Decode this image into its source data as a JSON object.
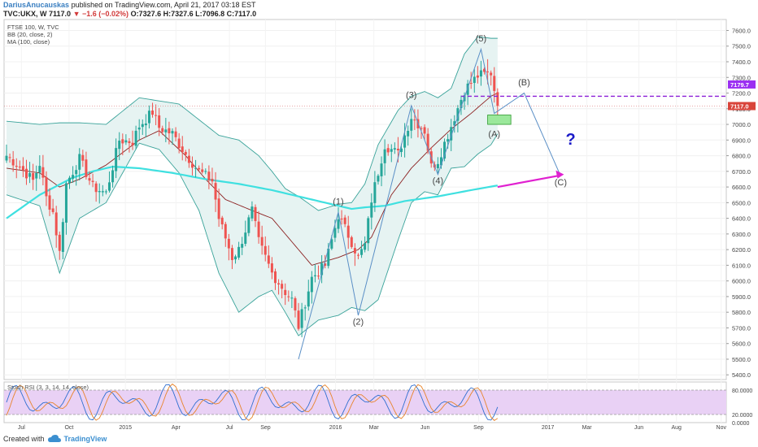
{
  "header": {
    "author": "DariusAnucauskas",
    "published": "published on TradingView.com, April 21, 2017 03:18 EST",
    "symbol": "TVC:UKX, W",
    "last": "7117.0",
    "change": "−1.6 (−0.02%)",
    "ohlc": "O:7327.6 H:7327.6 L:7096.8 C:7117.0"
  },
  "footer": {
    "created_with": "Created with",
    "brand": "TradingView"
  },
  "colors": {
    "up": "#26a69a",
    "down": "#ef5350",
    "ma100": "#3fe0e0",
    "ma20": "#8b2020",
    "bb": "#3aa39a",
    "bb_fill": "#e6f3f2",
    "wave": "#5a8fc6",
    "purple": "#8b1fd6",
    "magenta": "#e020d0",
    "green_box": "#9be89b",
    "stoch_k": "#2f6fd0",
    "stoch_d": "#e8842a",
    "stoch_band": "#e9d1f5",
    "last_price_tag": "#d9443a",
    "level_tag": "#9b2ff2",
    "question": "#1a1ac8"
  },
  "chart_data": {
    "type": "candlestick",
    "indicators_legend": [
      "FTSE 100, W, TVC",
      "BB (20, close, 2)",
      "MA (100, close)"
    ],
    "price_axis": [
      5400,
      5500,
      5600,
      5700,
      5800,
      5900,
      6000,
      6100,
      6200,
      6300,
      6400,
      6500,
      6600,
      6700,
      6800,
      6900,
      7000,
      7100,
      7200,
      7300,
      7400,
      7500,
      7600
    ],
    "price_range": [
      5370,
      7670
    ],
    "time_axis": [
      "Jul",
      "Oct",
      "2015",
      "Apr",
      "Jul",
      "Sep",
      "2016",
      "Mar",
      "Jun",
      "Sep",
      "2017",
      "Mar",
      "Jun",
      "Aug",
      "Nov"
    ],
    "last_price_label": "7117.0",
    "level_label": "7179.7",
    "level_value": 7179.7,
    "close_anchors": [
      [
        0,
        6800
      ],
      [
        4,
        6730
      ],
      [
        8,
        6640
      ],
      [
        10,
        6750
      ],
      [
        12,
        6530
      ],
      [
        14,
        6440
      ],
      [
        16,
        6180
      ],
      [
        18,
        6620
      ],
      [
        22,
        6780
      ],
      [
        26,
        6600
      ],
      [
        30,
        6560
      ],
      [
        34,
        6900
      ],
      [
        38,
        6890
      ],
      [
        40,
        6990
      ],
      [
        44,
        7080
      ],
      [
        46,
        6980
      ],
      [
        50,
        6940
      ],
      [
        54,
        6810
      ],
      [
        58,
        6700
      ],
      [
        62,
        6640
      ],
      [
        64,
        6400
      ],
      [
        68,
        6150
      ],
      [
        70,
        6200
      ],
      [
        74,
        6450
      ],
      [
        76,
        6250
      ],
      [
        80,
        6050
      ],
      [
        84,
        5930
      ],
      [
        86,
        5880
      ],
      [
        88,
        5710
      ],
      [
        92,
        6020
      ],
      [
        96,
        6100
      ],
      [
        100,
        6420
      ],
      [
        104,
        6250
      ],
      [
        106,
        6150
      ],
      [
        108,
        6230
      ],
      [
        110,
        6520
      ],
      [
        114,
        6870
      ],
      [
        118,
        6810
      ],
      [
        122,
        7050
      ],
      [
        126,
        6960
      ],
      [
        128,
        6730
      ],
      [
        130,
        6770
      ],
      [
        134,
        6990
      ],
      [
        138,
        7220
      ],
      [
        142,
        7310
      ],
      [
        146,
        7330
      ],
      [
        148,
        7117
      ]
    ],
    "bb_anchors": [
      [
        0,
        7020,
        6550
      ],
      [
        10,
        7000,
        6480
      ],
      [
        16,
        7010,
        6050
      ],
      [
        22,
        7010,
        6400
      ],
      [
        30,
        7000,
        6500
      ],
      [
        40,
        7170,
        6880
      ],
      [
        46,
        7150,
        6840
      ],
      [
        52,
        7130,
        6690
      ],
      [
        58,
        7030,
        6450
      ],
      [
        64,
        6930,
        6050
      ],
      [
        70,
        6900,
        5800
      ],
      [
        76,
        6800,
        5900
      ],
      [
        80,
        6700,
        5940
      ],
      [
        84,
        6590,
        5800
      ],
      [
        88,
        6540,
        5650
      ],
      [
        94,
        6450,
        5750
      ],
      [
        100,
        6490,
        5780
      ],
      [
        104,
        6500,
        5830
      ],
      [
        108,
        6620,
        5810
      ],
      [
        112,
        6870,
        5880
      ],
      [
        118,
        7090,
        6260
      ],
      [
        122,
        7180,
        6500
      ],
      [
        126,
        7210,
        6570
      ],
      [
        130,
        7170,
        6550
      ],
      [
        134,
        7230,
        6720
      ],
      [
        138,
        7450,
        6730
      ],
      [
        142,
        7560,
        6810
      ],
      [
        146,
        7550,
        6870
      ],
      [
        148,
        7550,
        6940
      ]
    ],
    "ma100_anchors": [
      [
        0,
        6400
      ],
      [
        10,
        6550
      ],
      [
        20,
        6660
      ],
      [
        26,
        6700
      ],
      [
        32,
        6730
      ],
      [
        40,
        6720
      ],
      [
        50,
        6690
      ],
      [
        60,
        6650
      ],
      [
        70,
        6620
      ],
      [
        80,
        6580
      ],
      [
        90,
        6530
      ],
      [
        100,
        6480
      ],
      [
        104,
        6460
      ],
      [
        108,
        6470
      ],
      [
        114,
        6480
      ],
      [
        120,
        6510
      ],
      [
        130,
        6540
      ],
      [
        140,
        6580
      ],
      [
        148,
        6610
      ]
    ],
    "ma20_anchors": [
      [
        0,
        6720
      ],
      [
        10,
        6690
      ],
      [
        16,
        6600
      ],
      [
        22,
        6650
      ],
      [
        30,
        6740
      ],
      [
        40,
        6900
      ],
      [
        46,
        6960
      ],
      [
        54,
        6800
      ],
      [
        60,
        6650
      ],
      [
        66,
        6520
      ],
      [
        74,
        6450
      ],
      [
        80,
        6400
      ],
      [
        86,
        6250
      ],
      [
        92,
        6100
      ],
      [
        100,
        6150
      ],
      [
        106,
        6200
      ],
      [
        110,
        6280
      ],
      [
        116,
        6550
      ],
      [
        122,
        6720
      ],
      [
        128,
        6850
      ],
      [
        134,
        6970
      ],
      [
        140,
        7070
      ],
      [
        146,
        7180
      ],
      [
        148,
        7200
      ]
    ],
    "wave_points": [
      [
        88,
        5500
      ],
      [
        100,
        6440
      ],
      [
        106,
        5780
      ],
      [
        122,
        7120
      ],
      [
        130,
        6680
      ],
      [
        143,
        7480
      ],
      [
        147,
        7070
      ],
      [
        156,
        7200
      ],
      [
        167,
        6670
      ]
    ],
    "wave_labels": [
      {
        "text": "(1)",
        "bar": 100,
        "price": 6490
      },
      {
        "text": "(2)",
        "bar": 106,
        "price": 5720
      },
      {
        "text": "(3)",
        "bar": 122,
        "price": 7170
      },
      {
        "text": "(4)",
        "bar": 130,
        "price": 6620
      },
      {
        "text": "(5)",
        "bar": 143,
        "price": 7530
      },
      {
        "text": "(A)",
        "bar": 147,
        "price": 6920
      },
      {
        "text": "(B)",
        "bar": 156,
        "price": 7250
      },
      {
        "text": "(C)",
        "bar": 167,
        "price": 6610
      }
    ],
    "target_box": {
      "bar_from": 145,
      "bar_to": 152,
      "price_lo": 7000,
      "price_hi": 7060
    },
    "magenta_arrow": {
      "from": [
        148,
        6600
      ],
      "to": [
        168,
        6680
      ]
    },
    "question_mark": {
      "text": "?",
      "bar": 170,
      "price": 6870
    },
    "stoch_legend": "Stoch RSI (3, 3, 14, 14, close)",
    "stoch_axis": [
      "80.0000",
      "20.0000",
      "0.0000"
    ],
    "stoch_range": [
      0,
      100
    ],
    "stoch_band": [
      20,
      80
    ]
  }
}
